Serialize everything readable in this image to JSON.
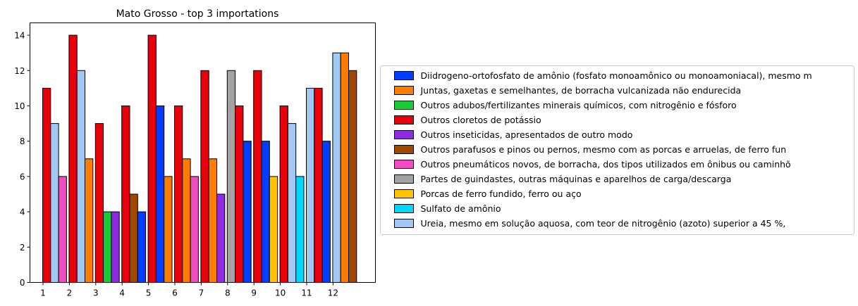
{
  "chart_data": {
    "type": "bar",
    "title": "Mato Grosso - top 3 importations",
    "xlabel": "",
    "ylabel": "",
    "categories": [
      "1",
      "2",
      "3",
      "4",
      "5",
      "6",
      "7",
      "8",
      "9",
      "10",
      "11",
      "12"
    ],
    "ylim": [
      0,
      14.7
    ],
    "yticks": [
      0,
      2,
      4,
      6,
      8,
      10,
      12,
      14
    ],
    "grid": false,
    "legend_position": "right",
    "bar_edge_color": "#000000",
    "series": [
      {
        "name": "Diidrogeno-ortofosfato de amônio (fosfato monoamônico ou monoamoniacal), mesmo m",
        "color": "#023eff"
      },
      {
        "name": "Juntas, gaxetas e semelhantes, de borracha vulcanizada não endurecida",
        "color": "#ff7c00"
      },
      {
        "name": "Outros adubos/fertilizantes minerais químicos, com nitrogênio e fósforo",
        "color": "#1ac938"
      },
      {
        "name": "Outros cloretos de potássio",
        "color": "#e8000b"
      },
      {
        "name": "Outros inseticidas, apresentados de outro modo",
        "color": "#8b2be2"
      },
      {
        "name": "Outros parafusos e pinos ou pernos, mesmo com as porcas e arruelas, de ferro fun",
        "color": "#9f4800"
      },
      {
        "name": "Outros pneumáticos novos, de borracha, dos tipos utilizados em ônibus ou caminhõ",
        "color": "#f14cc1"
      },
      {
        "name": "Partes de guindastes, outras máquinas e aparelhos de carga/descarga",
        "color": "#a3a3a3"
      },
      {
        "name": "Porcas de ferro fundido, ferro ou aço",
        "color": "#ffc400"
      },
      {
        "name": "Sulfato de amônio",
        "color": "#00d7ff"
      },
      {
        "name": "Ureia, mesmo em solução aquosa, com teor de nitrogênio (azoto) superior a 45 %,",
        "color": "#a1c9f4"
      }
    ],
    "groups": [
      {
        "category": "1",
        "bars": [
          {
            "series": 3,
            "value": 11
          },
          {
            "series": 10,
            "value": 9
          },
          {
            "series": 6,
            "value": 6
          }
        ]
      },
      {
        "category": "2",
        "bars": [
          {
            "series": 3,
            "value": 14
          },
          {
            "series": 10,
            "value": 12
          },
          {
            "series": 1,
            "value": 7
          }
        ]
      },
      {
        "category": "3",
        "bars": [
          {
            "series": 3,
            "value": 9
          },
          {
            "series": 2,
            "value": 4
          },
          {
            "series": 4,
            "value": 4
          }
        ]
      },
      {
        "category": "4",
        "bars": [
          {
            "series": 3,
            "value": 10
          },
          {
            "series": 5,
            "value": 5
          },
          {
            "series": 0,
            "value": 4
          }
        ]
      },
      {
        "category": "5",
        "bars": [
          {
            "series": 3,
            "value": 14
          },
          {
            "series": 0,
            "value": 10
          },
          {
            "series": 1,
            "value": 6
          }
        ]
      },
      {
        "category": "6",
        "bars": [
          {
            "series": 3,
            "value": 10
          },
          {
            "series": 1,
            "value": 7
          },
          {
            "series": 6,
            "value": 6
          }
        ]
      },
      {
        "category": "7",
        "bars": [
          {
            "series": 3,
            "value": 12
          },
          {
            "series": 1,
            "value": 7
          },
          {
            "series": 4,
            "value": 5
          }
        ]
      },
      {
        "category": "8",
        "bars": [
          {
            "series": 7,
            "value": 12
          },
          {
            "series": 3,
            "value": 10
          },
          {
            "series": 0,
            "value": 8
          }
        ]
      },
      {
        "category": "9",
        "bars": [
          {
            "series": 3,
            "value": 12
          },
          {
            "series": 0,
            "value": 8
          },
          {
            "series": 8,
            "value": 6
          }
        ]
      },
      {
        "category": "10",
        "bars": [
          {
            "series": 3,
            "value": 10
          },
          {
            "series": 10,
            "value": 9
          },
          {
            "series": 9,
            "value": 6
          }
        ]
      },
      {
        "category": "11",
        "bars": [
          {
            "series": 10,
            "value": 11
          },
          {
            "series": 3,
            "value": 11
          },
          {
            "series": 0,
            "value": 8
          }
        ]
      },
      {
        "category": "12",
        "bars": [
          {
            "series": 10,
            "value": 13
          },
          {
            "series": 1,
            "value": 13
          },
          {
            "series": 5,
            "value": 12
          }
        ]
      }
    ]
  }
}
